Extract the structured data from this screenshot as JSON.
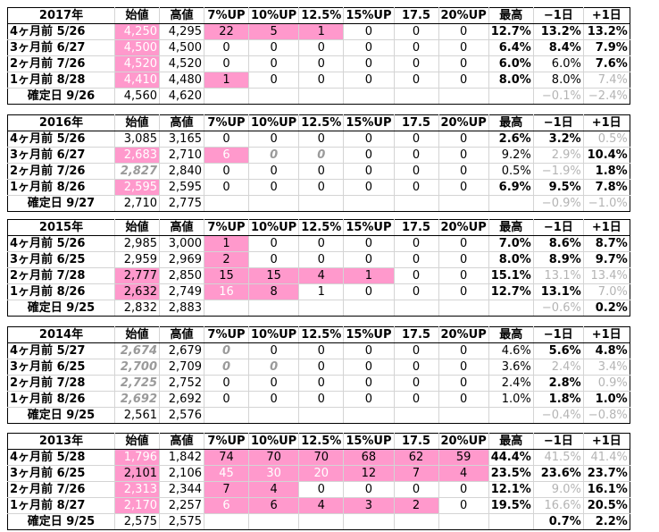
{
  "columns": [
    "始値",
    "高値",
    "7%UP",
    "10%UP",
    "12.5%",
    "15%UP",
    "17.5",
    "20%UP",
    "最高",
    "−1日",
    "+1日"
  ],
  "blocks": [
    {
      "year": "2017年",
      "rows": [
        {
          "label": "4ヶ月前  5/26",
          "cells": [
            "4,250",
            "4,295",
            "22",
            "5",
            "1",
            "0",
            "0",
            "0",
            "12.7%",
            "13.2%",
            "13.2%"
          ]
        },
        {
          "label": "3ヶ月前  6/27",
          "cells": [
            "4,500",
            "4,500",
            "0",
            "0",
            "0",
            "0",
            "0",
            "0",
            "6.4%",
            "8.4%",
            "7.9%"
          ]
        },
        {
          "label": "2ヶ月前  7/26",
          "cells": [
            "4,520",
            "4,520",
            "0",
            "0",
            "0",
            "0",
            "0",
            "0",
            "6.0%",
            "6.0%",
            "7.6%"
          ]
        },
        {
          "label": "1ヶ月前  8/28",
          "cells": [
            "4,410",
            "4,480",
            "1",
            "0",
            "0",
            "0",
            "0",
            "0",
            "8.0%",
            "8.0%",
            "7.4%"
          ]
        },
        {
          "label": "確定日  9/26",
          "cells": [
            "4,560",
            "4,620",
            "",
            "",
            "",
            "",
            "",
            "",
            "",
            "−0.1%",
            "−2.4%"
          ]
        }
      ]
    },
    {
      "year": "2016年",
      "rows": [
        {
          "label": "4ヶ月前  5/26",
          "cells": [
            "3,085",
            "3,165",
            "0",
            "0",
            "0",
            "0",
            "0",
            "0",
            "2.6%",
            "3.2%",
            "0.5%"
          ]
        },
        {
          "label": "3ヶ月前  6/27",
          "cells": [
            "2,683",
            "2,710",
            "6",
            "0",
            "0",
            "0",
            "0",
            "0",
            "9.2%",
            "2.9%",
            "10.4%"
          ]
        },
        {
          "label": "2ヶ月前  7/26",
          "cells": [
            "2,827",
            "2,840",
            "0",
            "0",
            "0",
            "0",
            "0",
            "0",
            "0.5%",
            "−1.9%",
            "1.8%"
          ]
        },
        {
          "label": "1ヶ月前  8/26",
          "cells": [
            "2,595",
            "2,595",
            "0",
            "0",
            "0",
            "0",
            "0",
            "0",
            "6.9%",
            "9.5%",
            "7.8%"
          ]
        },
        {
          "label": "確定日  9/27",
          "cells": [
            "2,710",
            "2,775",
            "",
            "",
            "",
            "",
            "",
            "",
            "",
            "−0.9%",
            "−1.0%"
          ]
        }
      ]
    },
    {
      "year": "2015年",
      "rows": [
        {
          "label": "4ヶ月前  5/26",
          "cells": [
            "2,985",
            "3,000",
            "1",
            "0",
            "0",
            "0",
            "0",
            "0",
            "7.0%",
            "8.6%",
            "8.7%"
          ]
        },
        {
          "label": "3ヶ月前  6/25",
          "cells": [
            "2,959",
            "2,969",
            "2",
            "0",
            "0",
            "0",
            "0",
            "0",
            "8.0%",
            "8.9%",
            "9.7%"
          ]
        },
        {
          "label": "2ヶ月前  7/28",
          "cells": [
            "2,777",
            "2,850",
            "15",
            "15",
            "4",
            "1",
            "0",
            "0",
            "15.1%",
            "13.1%",
            "13.4%"
          ]
        },
        {
          "label": "1ヶ月前  8/26",
          "cells": [
            "2,632",
            "2,749",
            "16",
            "8",
            "1",
            "0",
            "0",
            "0",
            "12.7%",
            "13.1%",
            "7.0%"
          ]
        },
        {
          "label": "確定日  9/25",
          "cells": [
            "2,832",
            "2,883",
            "",
            "",
            "",
            "",
            "",
            "",
            "",
            "−0.6%",
            "0.2%"
          ]
        }
      ]
    },
    {
      "year": "2014年",
      "rows": [
        {
          "label": "4ヶ月前  5/27",
          "cells": [
            "2,674",
            "2,679",
            "0",
            "0",
            "0",
            "0",
            "0",
            "0",
            "4.6%",
            "5.6%",
            "4.8%"
          ]
        },
        {
          "label": "3ヶ月前  6/25",
          "cells": [
            "2,700",
            "2,709",
            "0",
            "0",
            "0",
            "0",
            "0",
            "0",
            "3.6%",
            "2.4%",
            "3.4%"
          ]
        },
        {
          "label": "2ヶ月前  7/28",
          "cells": [
            "2,725",
            "2,752",
            "0",
            "0",
            "0",
            "0",
            "0",
            "0",
            "2.4%",
            "2.8%",
            "0.9%"
          ]
        },
        {
          "label": "1ヶ月前  8/26",
          "cells": [
            "2,692",
            "2,692",
            "0",
            "0",
            "0",
            "0",
            "0",
            "0",
            "1.0%",
            "1.8%",
            "1.0%"
          ]
        },
        {
          "label": "確定日  9/25",
          "cells": [
            "2,561",
            "2,576",
            "",
            "",
            "",
            "",
            "",
            "",
            "",
            "−0.4%",
            "−0.8%"
          ]
        }
      ]
    },
    {
      "year": "2013年",
      "rows": [
        {
          "label": "4ヶ月前  5/28",
          "cells": [
            "1,796",
            "1,842",
            "74",
            "70",
            "70",
            "68",
            "62",
            "59",
            "44.4%",
            "41.5%",
            "41.4%"
          ]
        },
        {
          "label": "3ヶ月前  6/25",
          "cells": [
            "2,101",
            "2,106",
            "45",
            "30",
            "20",
            "12",
            "7",
            "4",
            "23.5%",
            "23.6%",
            "23.7%"
          ]
        },
        {
          "label": "2ヶ月前  7/26",
          "cells": [
            "2,313",
            "2,344",
            "7",
            "4",
            "0",
            "0",
            "0",
            "0",
            "12.1%",
            "9.0%",
            "16.1%"
          ]
        },
        {
          "label": "1ヶ月前  8/27",
          "cells": [
            "2,170",
            "2,257",
            "6",
            "6",
            "4",
            "3",
            "2",
            "0",
            "19.5%",
            "16.6%",
            "20.5%"
          ]
        },
        {
          "label": "確定日  9/25",
          "cells": [
            "2,575",
            "2,575",
            "",
            "",
            "",
            "",
            "",
            "",
            "",
            "0.7%",
            "2.2%"
          ]
        }
      ]
    }
  ]
}
